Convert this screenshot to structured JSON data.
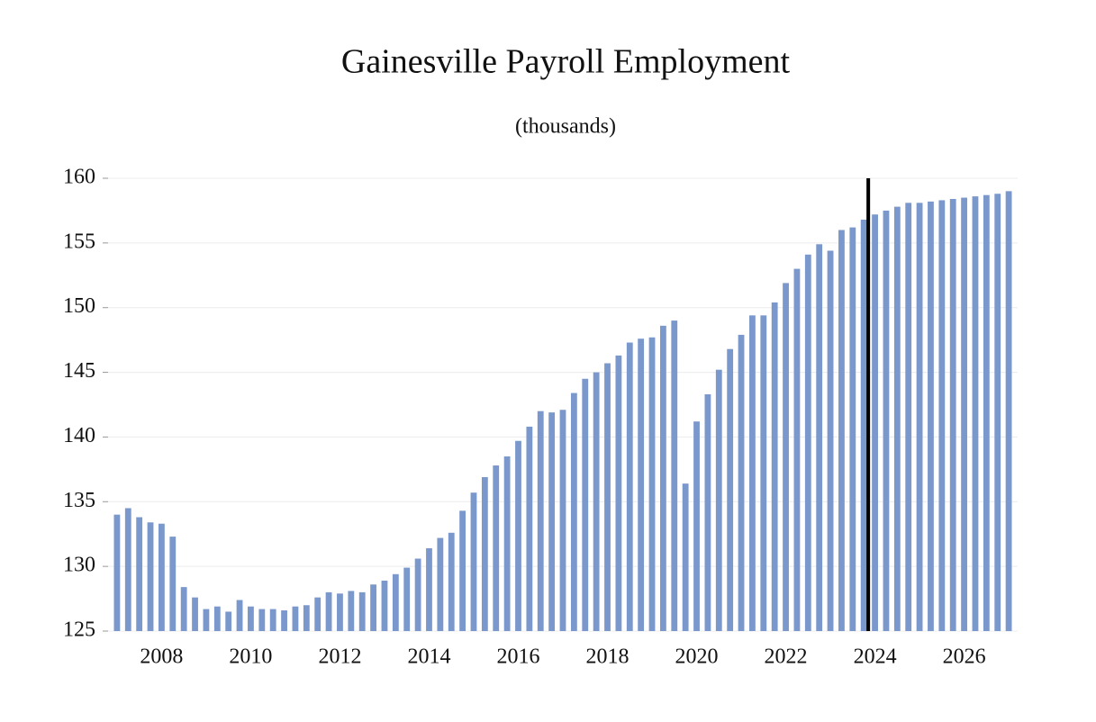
{
  "chart_data": {
    "type": "bar",
    "title": "Gainesville Payroll Employment",
    "subtitle": "(thousands)",
    "x": [
      2007,
      2007.25,
      2007.5,
      2007.75,
      2008,
      2008.25,
      2008.5,
      2008.75,
      2009,
      2009.25,
      2009.5,
      2009.75,
      2010,
      2010.25,
      2010.5,
      2010.75,
      2011,
      2011.25,
      2011.5,
      2011.75,
      2012,
      2012.25,
      2012.5,
      2012.75,
      2013,
      2013.25,
      2013.5,
      2013.75,
      2014,
      2014.25,
      2014.5,
      2014.75,
      2015,
      2015.25,
      2015.5,
      2015.75,
      2016,
      2016.25,
      2016.5,
      2016.75,
      2017,
      2017.25,
      2017.5,
      2017.75,
      2018,
      2018.25,
      2018.5,
      2018.75,
      2019,
      2019.25,
      2019.5,
      2019.75,
      2020,
      2020.25,
      2020.5,
      2020.75,
      2021,
      2021.25,
      2021.5,
      2021.75,
      2022,
      2022.25,
      2022.5,
      2022.75,
      2023,
      2023.25,
      2023.5,
      2023.75,
      2024,
      2024.25,
      2024.5,
      2024.75,
      2025,
      2025.25,
      2025.5,
      2025.75,
      2026,
      2026.25,
      2026.5,
      2026.75,
      2027
    ],
    "values": [
      134.0,
      134.5,
      133.8,
      133.4,
      133.3,
      132.3,
      128.4,
      127.6,
      126.7,
      126.9,
      126.5,
      127.4,
      126.9,
      126.7,
      126.7,
      126.6,
      126.9,
      127.0,
      127.6,
      128.0,
      127.9,
      128.1,
      128.0,
      128.6,
      128.9,
      129.4,
      129.9,
      130.6,
      131.4,
      132.2,
      132.6,
      134.3,
      135.7,
      136.9,
      137.8,
      138.5,
      139.7,
      140.8,
      142.0,
      141.9,
      142.1,
      143.4,
      144.5,
      145.0,
      145.7,
      146.3,
      147.3,
      147.6,
      147.7,
      148.6,
      149.0,
      136.4,
      141.2,
      143.3,
      145.2,
      146.8,
      147.9,
      149.4,
      149.4,
      150.4,
      151.9,
      153.0,
      154.1,
      154.9,
      154.4,
      156.0,
      156.2,
      156.8,
      157.2,
      157.5,
      157.8,
      158.1,
      158.1,
      158.2,
      158.3,
      158.4,
      158.5,
      158.6,
      158.7,
      158.8,
      159.0
    ],
    "color": "#7b98cc",
    "xlim": [
      2006.8,
      2027.2
    ],
    "xticks": [
      2008,
      2010,
      2012,
      2014,
      2016,
      2018,
      2020,
      2022,
      2024,
      2026
    ],
    "ylim": [
      125,
      160
    ],
    "yticks": [
      125,
      130,
      135,
      140,
      145,
      150,
      155,
      160
    ],
    "grid": true,
    "forecast_line": 2023.85
  }
}
